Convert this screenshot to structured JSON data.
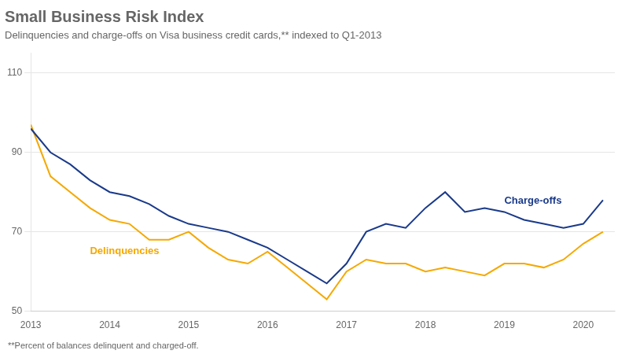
{
  "chart_data": {
    "type": "line",
    "title": "Small Business Risk Index",
    "subtitle": "Delinquencies and charge-offs on Visa business credit cards,** indexed to Q1-2013",
    "footnote": "**Percent of balances delinquent and charged-off.",
    "x": [
      2013.0,
      2013.25,
      2013.5,
      2013.75,
      2014.0,
      2014.25,
      2014.5,
      2014.75,
      2015.0,
      2015.25,
      2015.5,
      2015.75,
      2016.0,
      2016.25,
      2016.5,
      2016.75,
      2017.0,
      2017.25,
      2017.5,
      2017.75,
      2018.0,
      2018.25,
      2018.5,
      2018.75,
      2019.0,
      2019.25,
      2019.5,
      2019.75,
      2020.0,
      2020.25
    ],
    "series": [
      {
        "name": "Charge-offs",
        "color": "#1A3A8A",
        "values": [
          96,
          90,
          87,
          83,
          80,
          79,
          77,
          74,
          72,
          71,
          70,
          68,
          66,
          63,
          60,
          57,
          62,
          70,
          72,
          71,
          76,
          80,
          75,
          76,
          75,
          73,
          72,
          71,
          72,
          78
        ]
      },
      {
        "name": "Delinquencies",
        "color": "#F5A800",
        "values": [
          97,
          84,
          80,
          76,
          73,
          72,
          68,
          68,
          70,
          66,
          63,
          62,
          65,
          61,
          57,
          53,
          60,
          63,
          62,
          62,
          60,
          61,
          60,
          59,
          62,
          62,
          61,
          63,
          67,
          70
        ]
      }
    ],
    "xlim": [
      2013.0,
      2020.4
    ],
    "xticks": [
      2013,
      2014,
      2015,
      2016,
      2017,
      2018,
      2019,
      2020
    ],
    "ylim": [
      50,
      115
    ],
    "yticks": [
      50,
      70,
      90,
      110
    ],
    "grid": "y"
  }
}
